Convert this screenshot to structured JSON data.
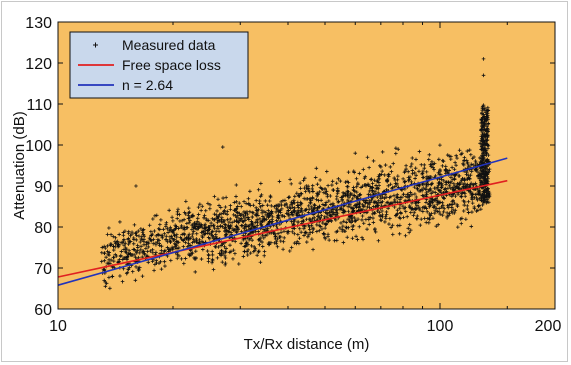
{
  "chart_data": {
    "type": "scatter",
    "title": "",
    "xlabel": "Tx/Rx distance (m)",
    "ylabel": "Attenuation (dB)",
    "xscale": "log",
    "xlim": [
      10,
      200
    ],
    "ylim": [
      60,
      130
    ],
    "xticks": [
      10,
      100,
      200
    ],
    "xtick_labels": [
      "10",
      "100",
      "200"
    ],
    "yticks": [
      60,
      70,
      80,
      90,
      100,
      110,
      120,
      130
    ],
    "ytick_labels": [
      "60",
      "70",
      "80",
      "90",
      "100",
      "110",
      "120",
      "130"
    ],
    "grid": false,
    "legend_position": "top-left",
    "background_color": "#f7bf63",
    "series": [
      {
        "name": "Measured data",
        "kind": "scatter",
        "color": "#111111",
        "marker": "+",
        "x_range": [
          13,
          135
        ],
        "trend_points": [
          [
            13,
            72
          ],
          [
            20,
            77
          ],
          [
            30,
            80
          ],
          [
            50,
            84
          ],
          [
            80,
            88
          ],
          [
            120,
            91
          ],
          [
            135,
            92
          ]
        ],
        "sample_outliers": [
          [
            16,
            90
          ],
          [
            27,
            99.5
          ],
          [
            60,
            98
          ],
          [
            130,
            121
          ],
          [
            130,
            117
          ]
        ]
      },
      {
        "name": "Free space loss",
        "kind": "line",
        "color": "#e02020",
        "x": [
          10,
          150
        ],
        "y": [
          67.8,
          91.3
        ]
      },
      {
        "name": "n = 2.64",
        "kind": "line",
        "color": "#2233bb",
        "x": [
          10,
          150
        ],
        "y": [
          65.8,
          96.8
        ]
      }
    ]
  }
}
